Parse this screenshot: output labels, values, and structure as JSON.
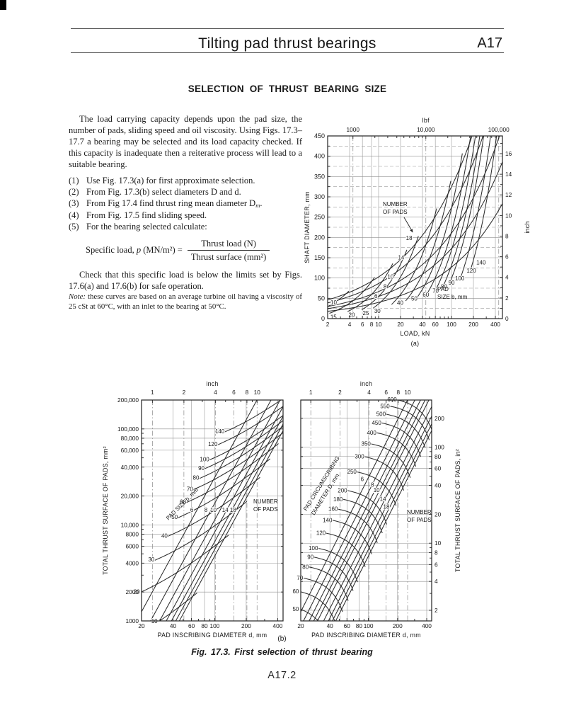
{
  "header": {
    "title": "Tilting pad thrust bearings",
    "page_ref": "A17"
  },
  "section_title": "SELECTION OF THRUST BEARING SIZE",
  "intro": "The load carrying capacity depends upon the pad size, the number of pads, sliding speed and oil viscosity. Using Figs. 17.3–17.7 a bearing may be selected and its load capacity checked. If this capacity is inadequate then a reiterative process will lead to a suitable bearing.",
  "steps": [
    {
      "num": "(1)",
      "text": "Use Fig. 17.3(a) for first approximate selection."
    },
    {
      "num": "(2)",
      "text": "From Fig. 17.3(b) select diameters D and d."
    },
    {
      "num": "(3)",
      "text": "From Fig 17.4 find thrust ring mean diameter D",
      "sub": "m",
      "post": "."
    },
    {
      "num": "(4)",
      "text": "From Fig. 17.5 find sliding speed."
    },
    {
      "num": "(5)",
      "text": "For the bearing selected calculate:"
    }
  ],
  "formula": {
    "label_pre": "Specific load, ",
    "label_var": "p",
    "label_post": " (MN/m²) =",
    "numerator": "Thrust load (N)",
    "denominator": "Thrust surface (mm²)"
  },
  "check_text": "Check that this specific load is below the limits set by Figs. 17.6(a) and 17.6(b) for safe operation.",
  "note": {
    "label": "Note:",
    "text": "these curves are based on an average turbine oil having a viscosity of 25 cSt at 60°C, with an inlet to the bearing at 50°C."
  },
  "figure": {
    "caption": "Fig. 17.3. First selection of thrust bearing",
    "sub_b": "(b)",
    "page_number": "A17.2"
  },
  "chart_data": [
    {
      "id": "a",
      "type": "line",
      "caption": "(a)",
      "x_axis": {
        "label": "LOAD, kN",
        "scale": "log",
        "min": 2,
        "max": 500,
        "ticks": [
          "2",
          "4",
          "6",
          "8",
          "10",
          "20",
          "40",
          "60",
          "100",
          "200",
          "400"
        ]
      },
      "top_axis": {
        "label": "lbf",
        "ticks": [
          "1000",
          "10,000",
          "100,000"
        ]
      },
      "y_axis": {
        "label": "SHAFT DIAMETER, mm",
        "scale": "linear",
        "min": 0,
        "max": 450,
        "ticks": [
          "0",
          "50",
          "100",
          "150",
          "200",
          "250",
          "300",
          "350",
          "400",
          "450"
        ]
      },
      "right_axis": {
        "label": "inch",
        "ticks": [
          "0",
          "2",
          "4",
          "6",
          "8",
          "10",
          "12",
          "14",
          "16"
        ]
      },
      "series": [
        {
          "name": "NUMBER OF PADS",
          "values": [
            6,
            8,
            10,
            14,
            18
          ]
        },
        {
          "name": "PAD SIZE b, mm",
          "values": [
            10,
            15,
            20,
            25,
            30,
            40,
            50,
            60,
            70,
            80,
            90,
            100,
            120,
            140
          ]
        }
      ],
      "annotations": {
        "pads_line1": "NUMBER",
        "pads_line2": "OF PADS",
        "size_line1": "PAD",
        "size_line2": "SIZE b, mm"
      }
    },
    {
      "id": "b-left",
      "type": "line",
      "x_axis": {
        "label": "PAD INSCRIBING DIAMETER d, mm",
        "scale": "log",
        "min": 20,
        "max": 450,
        "ticks": [
          "20",
          "40",
          "60",
          "80",
          "100",
          "200",
          "400"
        ]
      },
      "top_axis": {
        "label": "inch",
        "ticks": [
          "1",
          "2",
          "4",
          "6",
          "8",
          "10"
        ]
      },
      "y_axis": {
        "label": "TOTAL THRUST SURFACE OF PADS, mm²",
        "scale": "log",
        "min": 1000,
        "max": 200000,
        "ticks": [
          "1000",
          "2000",
          "4000",
          "6000",
          "8000",
          "10,000",
          "20,000",
          "40,000",
          "60,000",
          "80,000",
          "100,000",
          "200,000"
        ]
      },
      "series": [
        {
          "name": "NUMBER OF PADS",
          "values": [
            6,
            8,
            10,
            14,
            18
          ],
          "unlabeled": [
            12,
            16
          ]
        },
        {
          "name": "PAD SIZE b, mm",
          "values": [
            10,
            20,
            30,
            40,
            50,
            60,
            70,
            80,
            90,
            100,
            120,
            140
          ]
        }
      ],
      "annotations": {
        "pads_line1": "NUMBER",
        "pads_line2": "OF PADS",
        "size_title": "PAD SIZE b, mm"
      }
    },
    {
      "id": "b-right",
      "type": "line",
      "x_axis": {
        "label": "PAD INSCRIBING DIAMETER d, mm",
        "scale": "log",
        "min": 20,
        "max": 450,
        "ticks": [
          "20",
          "40",
          "60",
          "80",
          "100",
          "200",
          "400"
        ]
      },
      "top_axis": {
        "label": "inch",
        "ticks": [
          "1",
          "2",
          "4",
          "6",
          "8",
          "10"
        ]
      },
      "right_axis": {
        "label": "TOTAL THRUST SURFACE OF PADS, in²",
        "scale": "log",
        "ticks": [
          "2",
          "4",
          "6",
          "8",
          "10",
          "20",
          "40",
          "60",
          "80",
          "100",
          "200"
        ]
      },
      "series": [
        {
          "name": "NUMBER OF PADS",
          "values": [
            6,
            8,
            10,
            14,
            18
          ],
          "unlabeled": [
            7,
            9,
            12,
            16
          ]
        },
        {
          "name": "PAD CIRCUMSCRIBING DIAMETER D, mm",
          "values": [
            50,
            60,
            70,
            80,
            90,
            100,
            120,
            140,
            160,
            180,
            200,
            250,
            300,
            350,
            400,
            450,
            500,
            550,
            600
          ]
        }
      ],
      "annotations": {
        "pads_line1": "NUMBER",
        "pads_line2": "OF PADS",
        "circ_line1": "PAD CIRCUMSCRIBING",
        "circ_line2": "DIAMETER D, mm"
      }
    }
  ]
}
